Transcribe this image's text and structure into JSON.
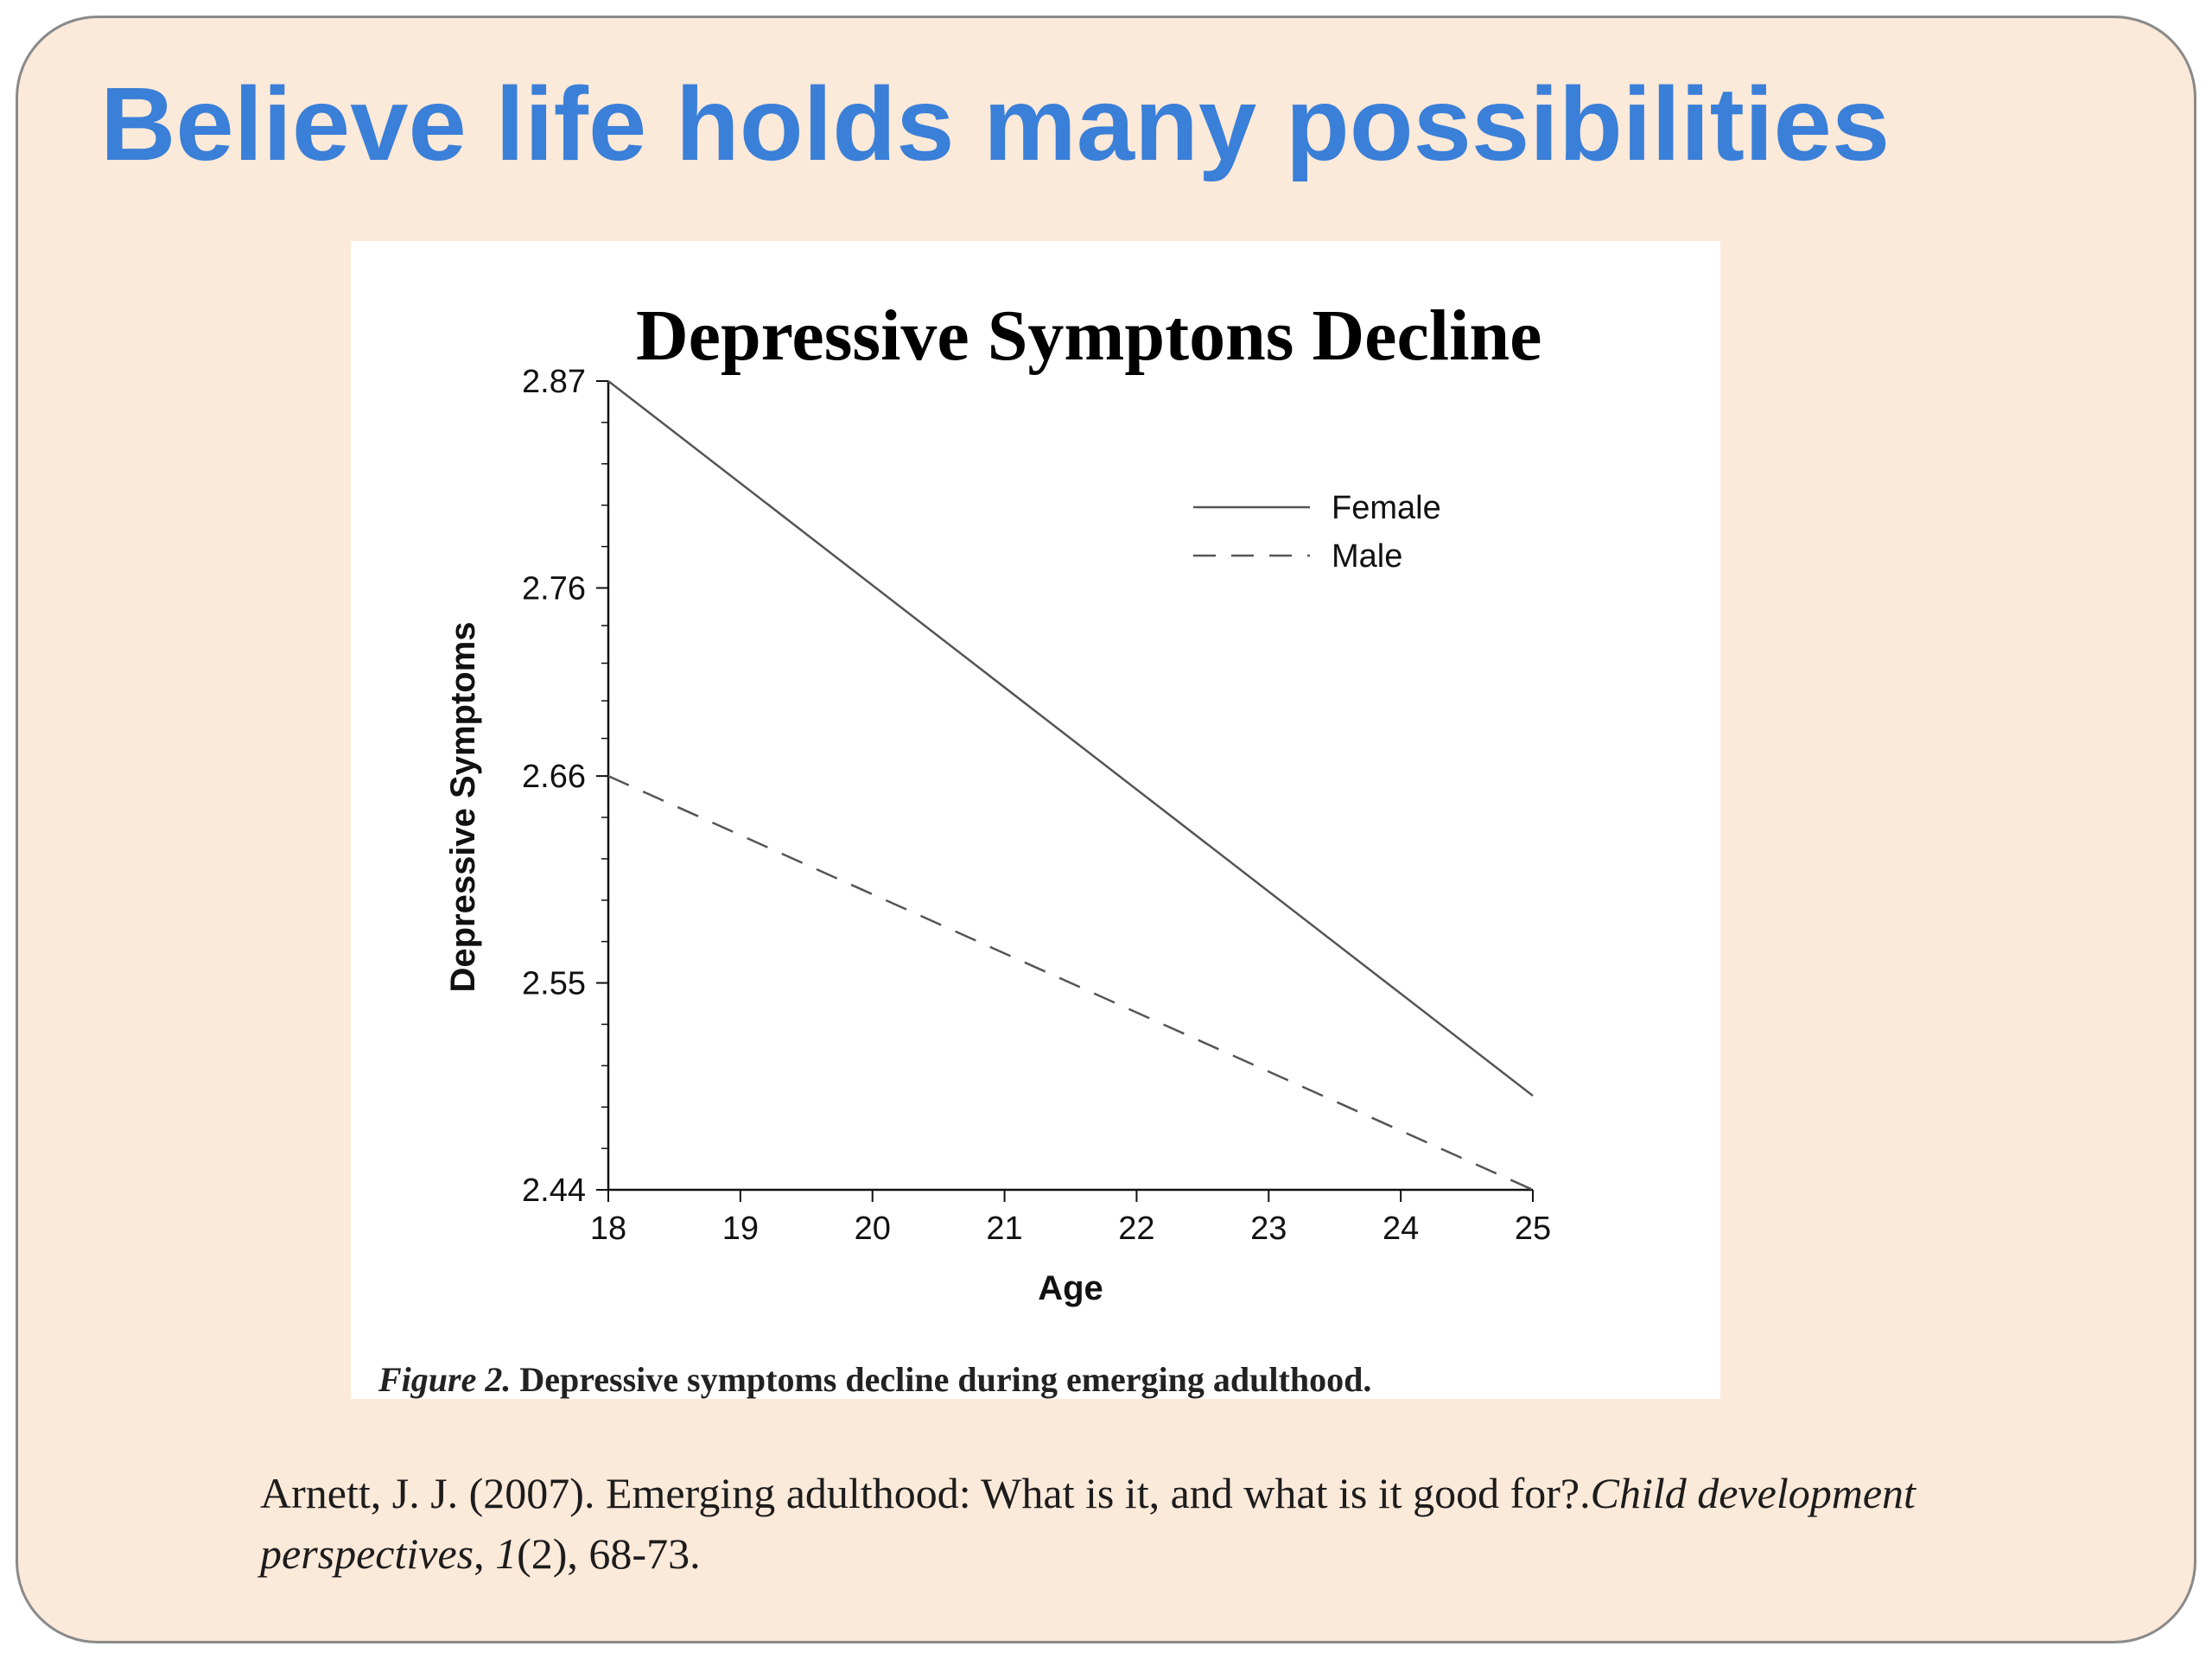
{
  "slide": {
    "title": "Believe life holds many possibilities"
  },
  "figure": {
    "caption_label": "Figure 2.",
    "caption_text": "Depressive symptoms decline during emerging adulthood."
  },
  "citation": {
    "part1": "Arnett, J. J. (2007). Emerging adulthood: What is it, and what is it good for?.",
    "journal": "Child development perspectives",
    "sep1": ", ",
    "volume": "1",
    "rest": "(2), 68-73."
  },
  "chart_data": {
    "type": "line",
    "title": "Depressive Symptons Decline",
    "xlabel": "Age",
    "ylabel": "Depressive Symptoms",
    "x": [
      18,
      19,
      20,
      21,
      22,
      23,
      24,
      25
    ],
    "xlim": [
      18,
      25
    ],
    "ylim": [
      2.44,
      2.87
    ],
    "yticks": [
      2.44,
      2.55,
      2.66,
      2.76,
      2.87
    ],
    "xticks": [
      18,
      19,
      20,
      21,
      22,
      23,
      24,
      25
    ],
    "grid": false,
    "legend_position": "upper-right",
    "series": [
      {
        "name": "Female",
        "style": "solid",
        "color": "#555555",
        "x": [
          18,
          25
        ],
        "values": [
          2.87,
          2.49
        ]
      },
      {
        "name": "Male",
        "style": "dashed",
        "color": "#555555",
        "x": [
          18,
          25
        ],
        "values": [
          2.66,
          2.44
        ]
      }
    ]
  }
}
